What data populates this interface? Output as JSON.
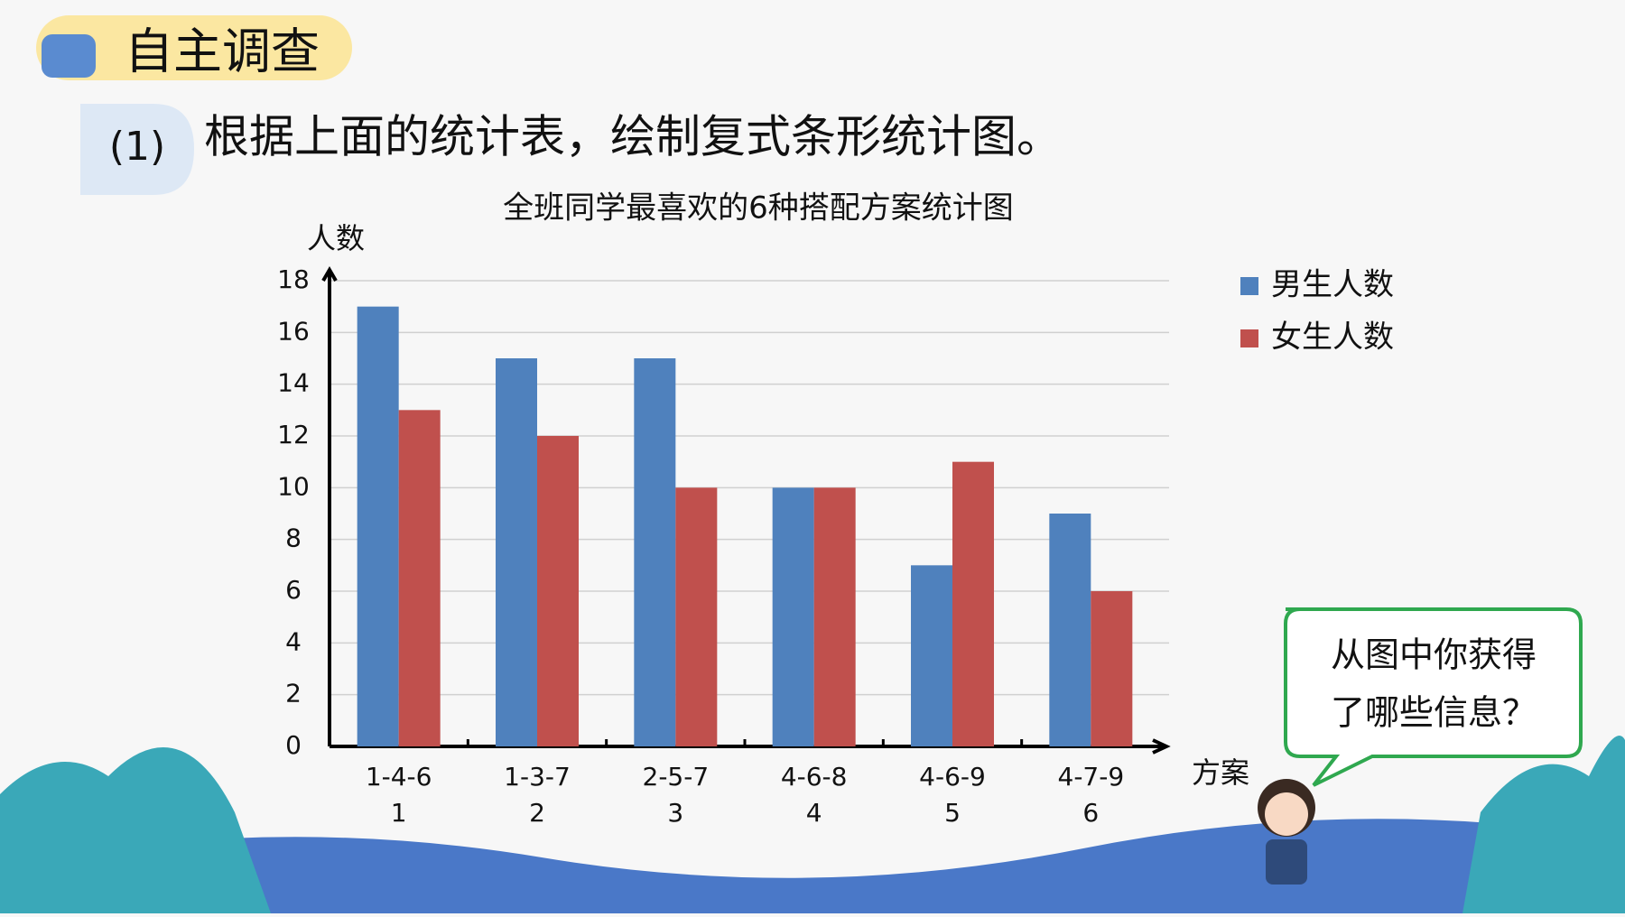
{
  "header": {
    "title": "自主调查",
    "step": "(1)",
    "instruction": "根据上面的统计表，绘制复式条形统计图。"
  },
  "chart_data": {
    "type": "bar",
    "title": "全班同学最喜欢的6种搭配方案统计图",
    "y_label": "人数",
    "x_label": "方案",
    "categories": [
      "1-4-6",
      "1-3-7",
      "2-5-7",
      "4-6-8",
      "4-6-9",
      "4-7-9"
    ],
    "category_numbers": [
      "1",
      "2",
      "3",
      "4",
      "5",
      "6"
    ],
    "series": [
      {
        "name": "男生人数",
        "color": "#4f81bd",
        "values": [
          17,
          15,
          15,
          10,
          7,
          9
        ]
      },
      {
        "name": "女生人数",
        "color": "#c0504d",
        "values": [
          13,
          12,
          10,
          10,
          11,
          6
        ]
      }
    ],
    "ylim": [
      0,
      18
    ],
    "yticks": [
      0,
      2,
      4,
      6,
      8,
      10,
      12,
      14,
      16,
      18
    ],
    "grid": true
  },
  "bubble": {
    "lines": [
      "从图中你获得",
      "了哪些信息？"
    ]
  }
}
